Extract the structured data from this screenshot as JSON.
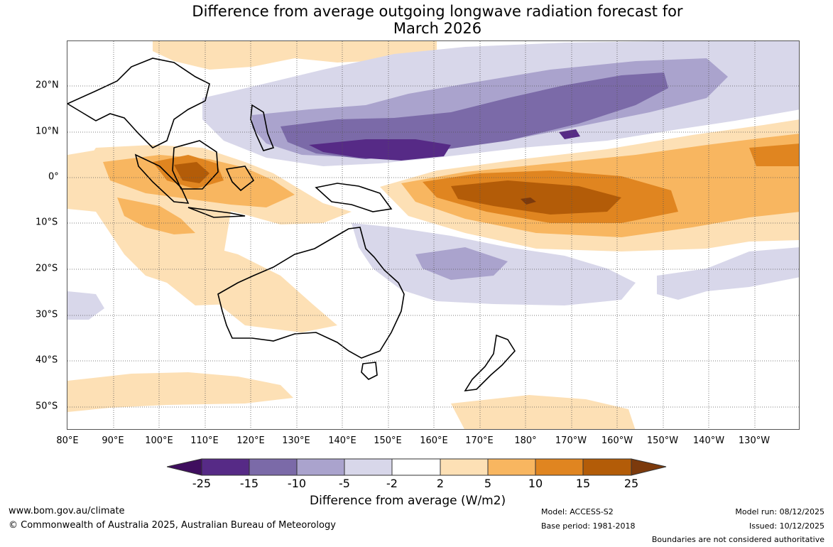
{
  "title_line1": "Difference from average outgoing longwave radiation forecast for",
  "title_line2": "March 2026",
  "longitude_labels": [
    "80°E",
    "90°E",
    "100°E",
    "110°E",
    "120°E",
    "130°E",
    "140°E",
    "150°E",
    "160°E",
    "170°E",
    "180°",
    "170°W",
    "160°W",
    "150°W",
    "140°W",
    "130°W"
  ],
  "latitude_labels": [
    "20°N",
    "10°N",
    "0°",
    "10°S",
    "20°S",
    "30°S",
    "40°S",
    "50°S"
  ],
  "colorbar": {
    "ticks": [
      "-25",
      "-15",
      "-10",
      "-5",
      "-2",
      "2",
      "5",
      "10",
      "15",
      "25"
    ],
    "colors": [
      "#3f0e5e",
      "#562a86",
      "#7b6aa8",
      "#aaa3cd",
      "#d8d7ea",
      "#ffffff",
      "#fde0b5",
      "#f8b660",
      "#e08520",
      "#b35c08",
      "#7c3a0c"
    ],
    "title": "Difference from average (W/m2)"
  },
  "footer": {
    "url": "www.bom.gov.au/climate",
    "copyright": "© Commonwealth of Australia 2025, Australian Bureau of Meteorology",
    "model": "Model: ACCESS-S2",
    "base_period": "Base period: 1981-2018",
    "model_run": "Model run: 08/12/2025",
    "issued": "Issued: 10/12/2025",
    "disclaimer": "Boundaries are not considered authoritative"
  }
}
